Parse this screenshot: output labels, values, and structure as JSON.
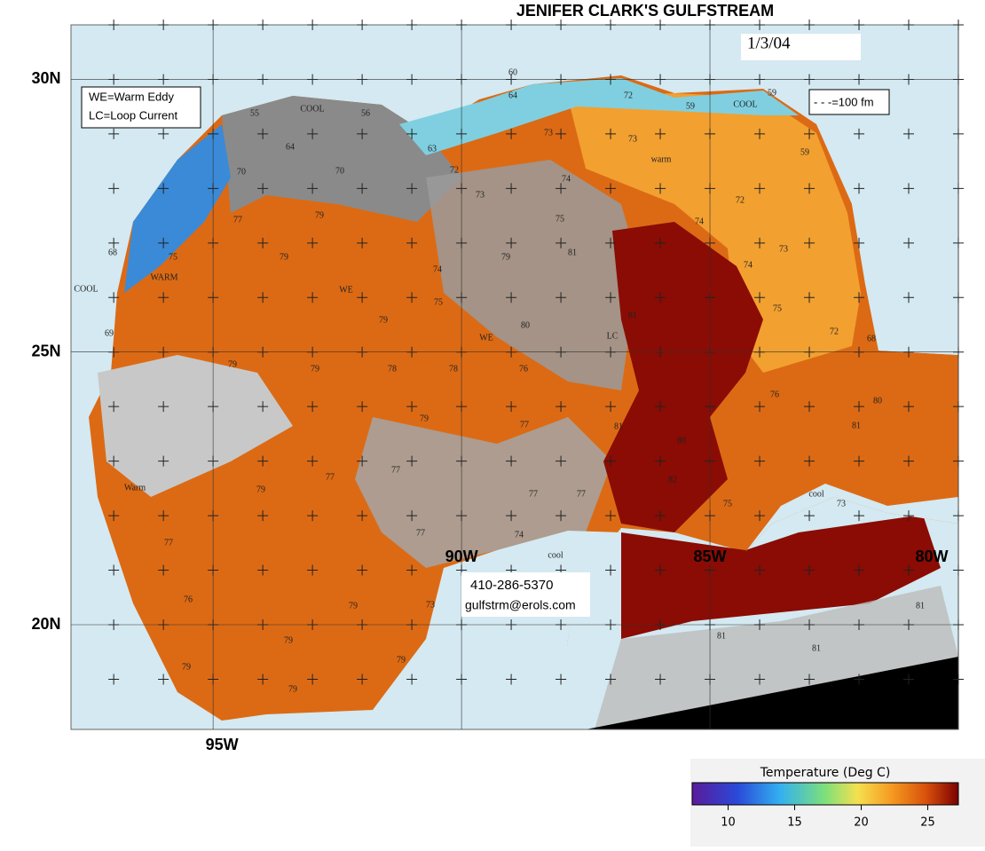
{
  "header": {
    "title": "JENIFER CLARK'S GULFSTREAM",
    "date": "1/3/04"
  },
  "key": {
    "lines": [
      "WE=Warm Eddy",
      "LC=Loop Current"
    ],
    "contour": "- - -=100 fm"
  },
  "contact": {
    "phone": "410-286-5370",
    "email": "gulfstrm@erols.com"
  },
  "map": {
    "xlim": [
      -97.86,
      -80
    ],
    "ylim": [
      18.08,
      31.0
    ],
    "lat_ticks": [
      {
        "value": 30,
        "label": "30N"
      },
      {
        "value": 25,
        "label": "25N"
      },
      {
        "value": 20,
        "label": "20N"
      }
    ],
    "lon_ticks": [
      {
        "value": -95,
        "label": "95W"
      },
      {
        "value": -90,
        "label": "90W"
      },
      {
        "value": -85,
        "label": "85W"
      },
      {
        "value": -80,
        "label": "80W"
      }
    ],
    "labels": [
      "60",
      "64",
      "72",
      "73",
      "73",
      "59",
      "COOL",
      "59",
      "59",
      "55",
      "COOL",
      "56",
      "64",
      "63",
      "70",
      "70",
      "72",
      "74",
      "warm",
      "73",
      "74",
      "72",
      "79",
      "77",
      "75",
      "79",
      "81",
      "74",
      "73",
      "75",
      "WARM",
      "68",
      "COOL",
      "79",
      "74",
      "WE",
      "75",
      "81",
      "75",
      "72",
      "68",
      "79",
      "WE",
      "80",
      "LC",
      "69",
      "79",
      "79",
      "78",
      "78",
      "76",
      "76",
      "80",
      "81",
      "79",
      "77",
      "81",
      "80",
      "82",
      "77",
      "77",
      "77",
      "77",
      "75",
      "cool",
      "73",
      "77",
      "77",
      "74",
      "cool",
      "76",
      "79",
      "73",
      "81",
      "79",
      "81",
      "81",
      "79",
      "79",
      "79",
      "Warm",
      "79"
    ]
  },
  "colorbar": {
    "title": "Temperature (Deg C)",
    "lim": [
      7.3,
      27.3
    ],
    "ticks": [
      10,
      15,
      20,
      25
    ]
  }
}
